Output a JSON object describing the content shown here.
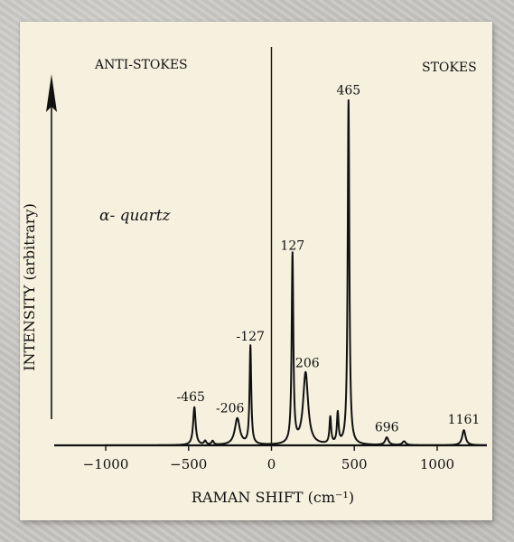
{
  "chart_data": {
    "type": "line",
    "title": "α- quartz",
    "region_labels": {
      "left": "ANTI-STOKES",
      "right": "STOKES"
    },
    "xlabel": "RAMAN SHIFT (cm⁻¹)",
    "ylabel": "INTENSITY (arbitrary)",
    "xlim": [
      -1300,
      1300
    ],
    "ylim": [
      0,
      100
    ],
    "x_ticks": [
      -1000,
      -500,
      0,
      500,
      1000
    ],
    "grid": false,
    "legend": "none",
    "peaks": [
      {
        "x": -465,
        "height": 10,
        "width": 9,
        "label": "-465"
      },
      {
        "x": -206,
        "height": 7,
        "width": 18,
        "label": "-206"
      },
      {
        "x": -127,
        "height": 26,
        "width": 6,
        "label": "-127"
      },
      {
        "x": 127,
        "height": 50,
        "width": 6,
        "label": "127"
      },
      {
        "x": 206,
        "height": 19,
        "width": 18,
        "label": "206"
      },
      {
        "x": 355,
        "height": 7,
        "width": 6,
        "label": ""
      },
      {
        "x": 400,
        "height": 8,
        "width": 6,
        "label": ""
      },
      {
        "x": 465,
        "height": 91,
        "width": 6,
        "label": "465"
      },
      {
        "x": 696,
        "height": 2,
        "width": 12,
        "label": "696"
      },
      {
        "x": 800,
        "height": 1,
        "width": 12,
        "label": ""
      },
      {
        "x": 1161,
        "height": 4,
        "width": 12,
        "label": "1161"
      },
      {
        "x": -400,
        "height": 1,
        "width": 8,
        "label": ""
      },
      {
        "x": -355,
        "height": 1,
        "width": 8,
        "label": ""
      }
    ]
  }
}
